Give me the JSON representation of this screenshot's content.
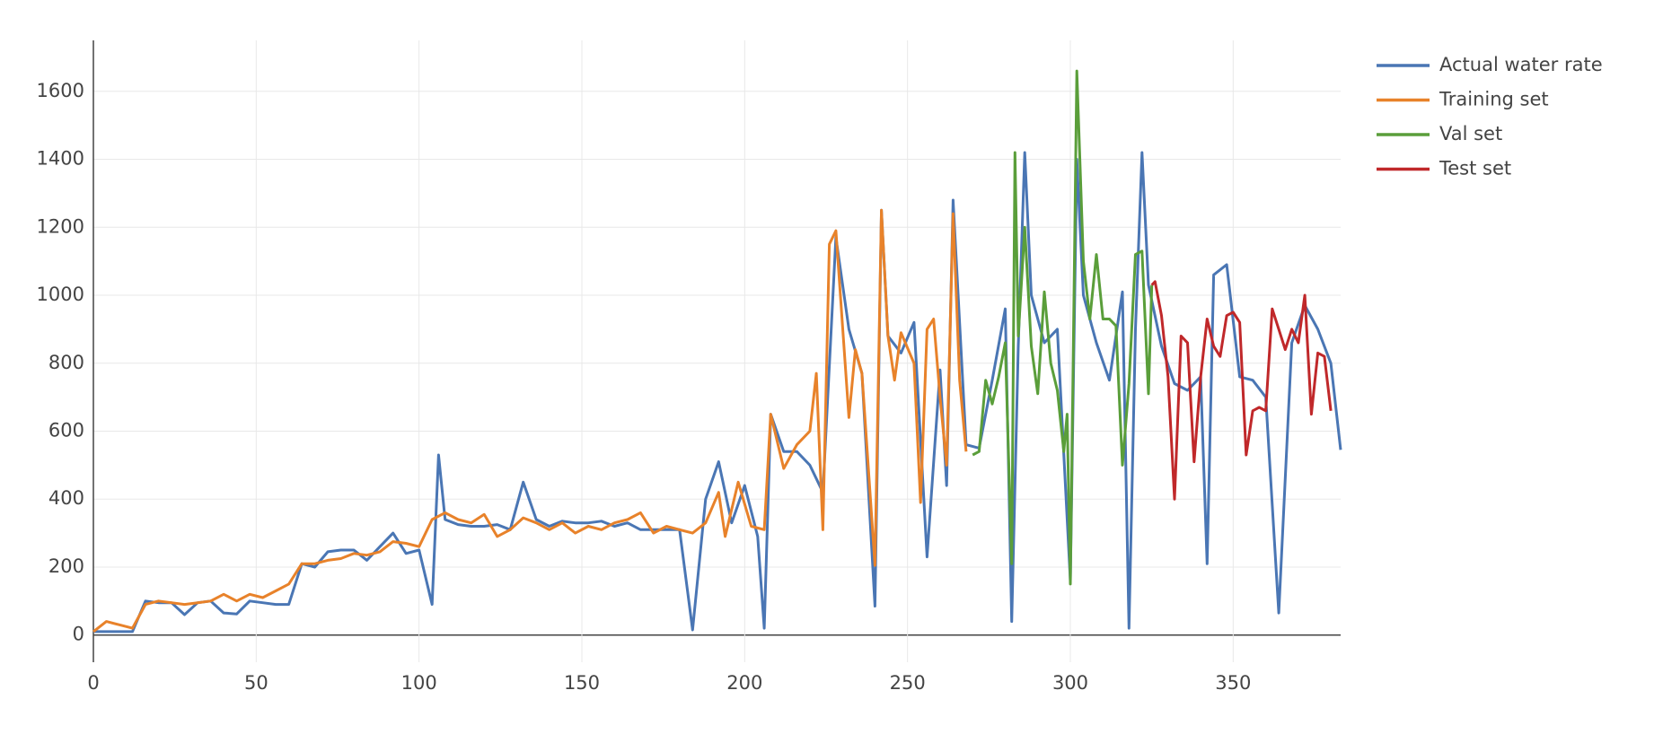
{
  "chart_data": {
    "type": "line",
    "xlim": [
      0,
      383
    ],
    "xticks": [
      0,
      50,
      100,
      150,
      200,
      250,
      300,
      350
    ],
    "ylim": [
      -80,
      1750
    ],
    "yticks": [
      0,
      200,
      400,
      600,
      800,
      1000,
      1200,
      1400,
      1600
    ],
    "grid": true,
    "legend": "right",
    "series": [
      {
        "name": "Actual water rate",
        "color": "#4a76b4",
        "x": [
          0,
          4,
          8,
          12,
          16,
          20,
          24,
          28,
          32,
          36,
          40,
          44,
          48,
          52,
          56,
          60,
          64,
          68,
          72,
          76,
          80,
          84,
          88,
          92,
          96,
          100,
          104,
          106,
          108,
          112,
          116,
          120,
          124,
          128,
          132,
          136,
          140,
          144,
          148,
          152,
          156,
          160,
          164,
          168,
          172,
          176,
          180,
          184,
          188,
          192,
          196,
          200,
          204,
          206,
          208,
          212,
          216,
          220,
          224,
          228,
          232,
          236,
          240,
          242,
          244,
          248,
          252,
          256,
          260,
          262,
          264,
          268,
          272,
          276,
          280,
          282,
          284,
          286,
          288,
          292,
          296,
          300,
          302,
          304,
          308,
          312,
          316,
          318,
          320,
          322,
          324,
          328,
          332,
          336,
          340,
          342,
          344,
          348,
          352,
          356,
          360,
          364,
          368,
          372,
          376,
          380,
          383
        ],
        "values": [
          10,
          10,
          10,
          10,
          100,
          95,
          95,
          60,
          95,
          100,
          65,
          62,
          100,
          95,
          90,
          90,
          210,
          200,
          245,
          250,
          250,
          220,
          260,
          300,
          240,
          250,
          90,
          530,
          340,
          325,
          320,
          320,
          325,
          310,
          450,
          340,
          320,
          335,
          330,
          330,
          335,
          320,
          330,
          310,
          310,
          310,
          310,
          15,
          400,
          510,
          330,
          440,
          290,
          20,
          650,
          540,
          540,
          500,
          420,
          1170,
          900,
          770,
          85,
          1250,
          880,
          830,
          920,
          230,
          780,
          440,
          1280,
          560,
          550,
          750,
          960,
          40,
          850,
          1420,
          1000,
          860,
          900,
          160,
          1400,
          1000,
          860,
          750,
          1010,
          20,
          900,
          1420,
          1030,
          850,
          740,
          720,
          760,
          210,
          1060,
          1090,
          760,
          750,
          700,
          65,
          860,
          970,
          900,
          800,
          545
        ]
      },
      {
        "name": "Training set",
        "color": "#e8822a",
        "x": [
          0,
          4,
          8,
          12,
          16,
          20,
          24,
          28,
          32,
          36,
          40,
          44,
          48,
          52,
          56,
          60,
          64,
          68,
          72,
          76,
          80,
          84,
          88,
          92,
          96,
          100,
          104,
          108,
          112,
          116,
          120,
          124,
          128,
          132,
          136,
          140,
          144,
          148,
          152,
          156,
          160,
          164,
          168,
          172,
          176,
          180,
          184,
          188,
          192,
          194,
          198,
          202,
          206,
          208,
          212,
          216,
          220,
          222,
          224,
          226,
          228,
          232,
          234,
          236,
          240,
          242,
          244,
          246,
          248,
          252,
          254,
          256,
          258,
          260,
          262,
          264,
          266,
          268
        ],
        "values": [
          10,
          40,
          30,
          20,
          90,
          100,
          95,
          90,
          95,
          100,
          120,
          100,
          120,
          110,
          130,
          150,
          210,
          210,
          220,
          225,
          240,
          235,
          245,
          275,
          270,
          260,
          340,
          360,
          340,
          330,
          355,
          290,
          310,
          345,
          330,
          310,
          330,
          300,
          320,
          310,
          330,
          340,
          360,
          300,
          320,
          310,
          300,
          330,
          420,
          290,
          450,
          320,
          310,
          650,
          490,
          560,
          600,
          770,
          310,
          1150,
          1190,
          640,
          840,
          770,
          205,
          1250,
          880,
          750,
          890,
          800,
          390,
          900,
          930,
          700,
          500,
          1240,
          750,
          540
        ]
      },
      {
        "name": "Val set",
        "color": "#5a9e3a",
        "x": [
          270,
          272,
          274,
          276,
          278,
          280,
          282,
          283,
          284,
          286,
          288,
          290,
          292,
          294,
          296,
          298,
          299,
          300,
          302,
          304,
          306,
          308,
          310,
          312,
          314,
          316,
          318,
          320,
          322,
          324,
          325
        ],
        "values": [
          530,
          540,
          750,
          680,
          760,
          860,
          210,
          1420,
          880,
          1200,
          850,
          710,
          1010,
          800,
          720,
          540,
          650,
          150,
          1660,
          1100,
          930,
          1120,
          930,
          930,
          910,
          500,
          740,
          1120,
          1130,
          710,
          1030
        ]
      },
      {
        "name": "Test set",
        "color": "#c0282a",
        "x": [
          325,
          326,
          328,
          330,
          332,
          334,
          336,
          338,
          340,
          342,
          344,
          346,
          348,
          350,
          352,
          354,
          356,
          358,
          360,
          362,
          364,
          366,
          368,
          370,
          372,
          374,
          376,
          378,
          380
        ],
        "values": [
          1030,
          1040,
          940,
          760,
          400,
          880,
          860,
          510,
          760,
          930,
          850,
          820,
          940,
          950,
          920,
          530,
          660,
          670,
          660,
          960,
          900,
          840,
          900,
          860,
          1000,
          650,
          830,
          820,
          660
        ]
      }
    ]
  }
}
